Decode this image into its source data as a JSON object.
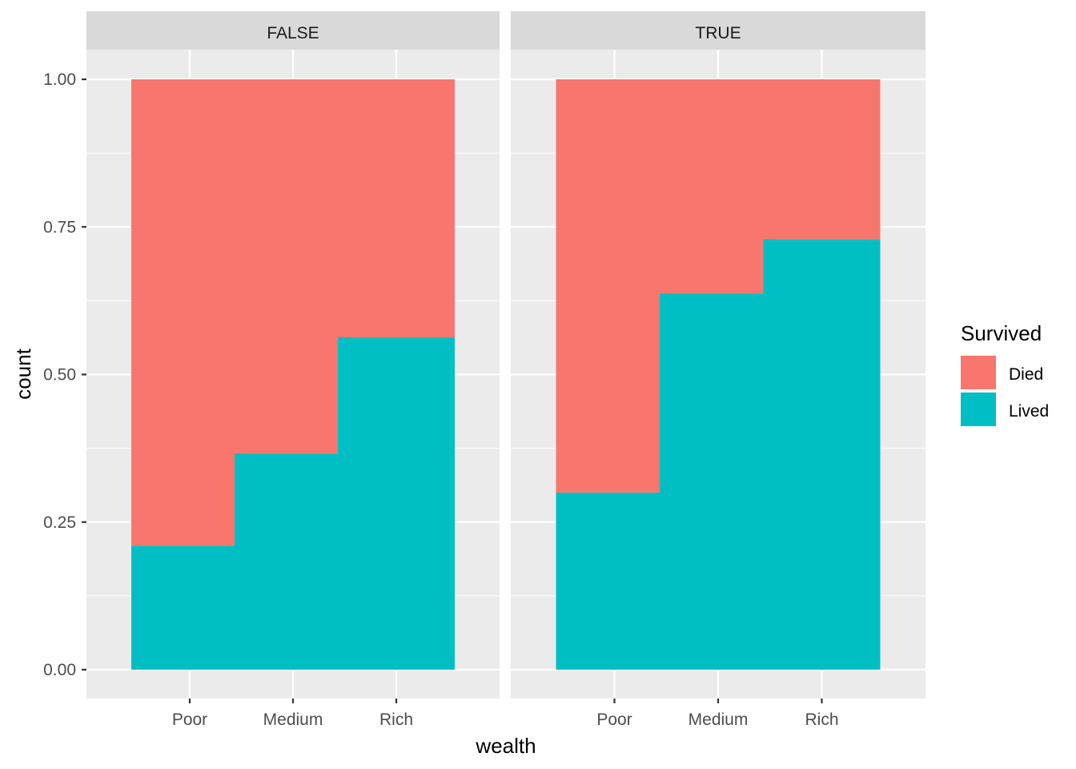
{
  "chart_data": {
    "type": "bar",
    "stacked": true,
    "xlabel": "wealth",
    "ylabel": "count",
    "ylim": [
      0,
      1
    ],
    "yticks": [
      "0.00",
      "0.25",
      "0.50",
      "0.75",
      "1.00"
    ],
    "categories": [
      "Poor",
      "Medium",
      "Rich"
    ],
    "facets": [
      {
        "label": "FALSE",
        "series": [
          {
            "name": "Died",
            "values": [
              0.79,
              0.634,
              0.437
            ]
          },
          {
            "name": "Lived",
            "values": [
              0.21,
              0.366,
              0.563
            ]
          }
        ]
      },
      {
        "label": "TRUE",
        "series": [
          {
            "name": "Died",
            "values": [
              0.7,
              0.363,
              0.271
            ]
          },
          {
            "name": "Lived",
            "values": [
              0.3,
              0.637,
              0.729
            ]
          }
        ]
      }
    ],
    "legend": {
      "title": "Survived",
      "position": "right",
      "entries": [
        {
          "name": "Died",
          "color": "#F8766D"
        },
        {
          "name": "Lived",
          "color": "#00BFC4"
        }
      ]
    },
    "grid": true,
    "colors": {
      "panel": "#EBEBEB",
      "strip": "#D9D9D9",
      "grid": "#FFFFFF",
      "Died": "#F8766D",
      "Lived": "#00BFC4"
    }
  }
}
